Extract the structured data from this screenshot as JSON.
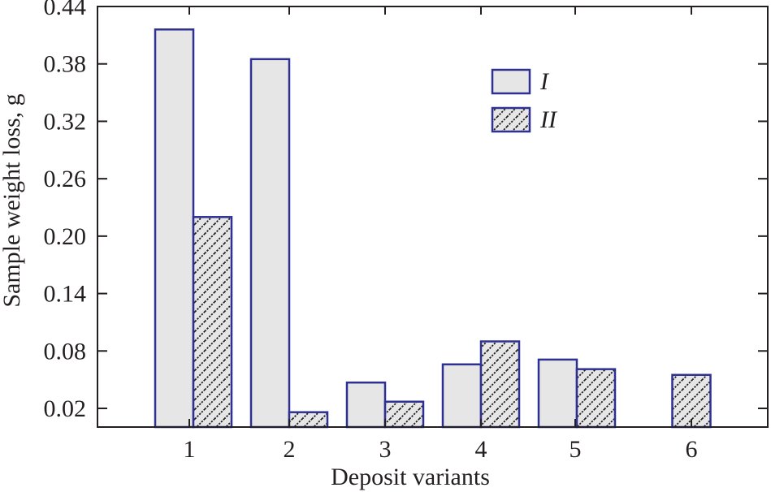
{
  "chart_data": {
    "type": "bar",
    "categories": [
      "1",
      "2",
      "3",
      "4",
      "5",
      "6"
    ],
    "series": [
      {
        "name": "I",
        "values": [
          0.416,
          0.385,
          0.047,
          0.066,
          0.071,
          null
        ]
      },
      {
        "name": "II",
        "values": [
          0.22,
          0.016,
          0.027,
          0.09,
          0.061,
          0.055
        ]
      }
    ],
    "xlabel": "Deposit variants",
    "ylabel": "Sample weight loss, g",
    "ylim": [
      0.0,
      0.44
    ],
    "yticks": [
      "0.02",
      "0.08",
      "0.14",
      "0.20",
      "0.26",
      "0.32",
      "0.38",
      "0.44"
    ],
    "grid": false,
    "legend_position": "top-right",
    "colors": {
      "bar_stroke": "#2e3192",
      "series_I_fill": "#e6e6e6",
      "series_II_fill": "#e6e6e6",
      "hatch": "#231f20",
      "axis": "#231f20"
    }
  }
}
